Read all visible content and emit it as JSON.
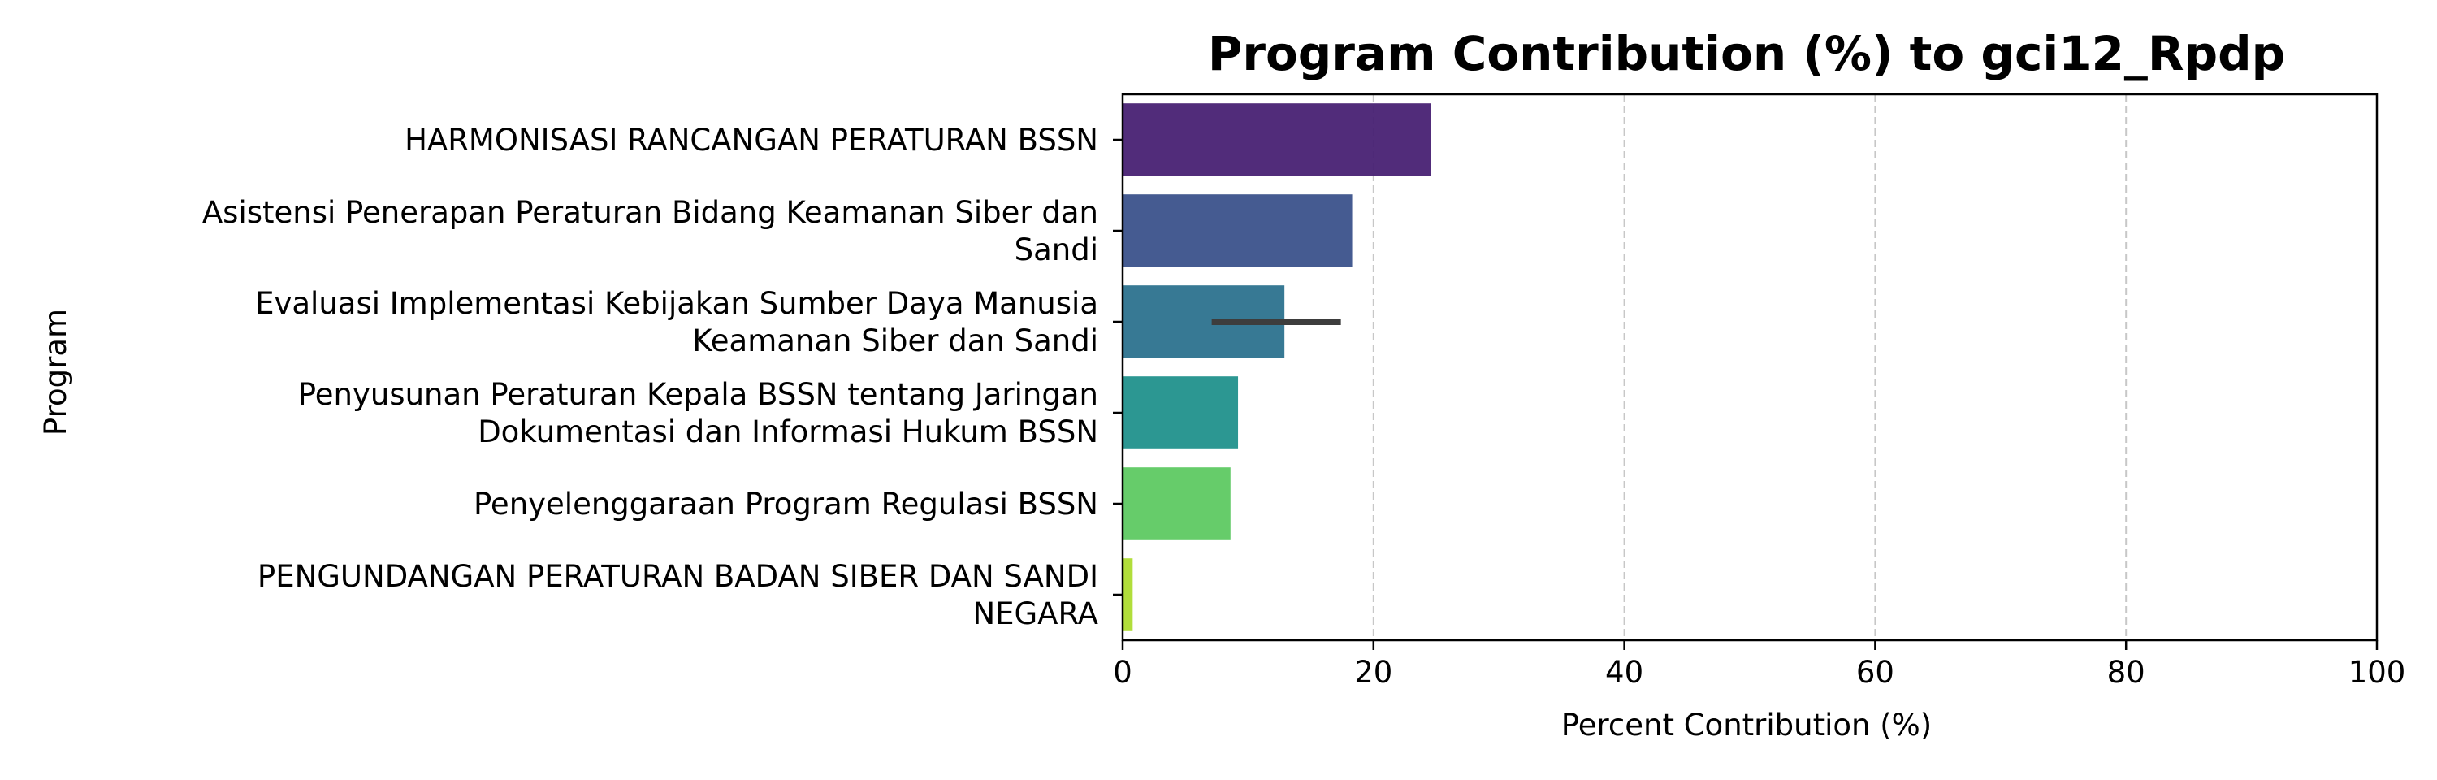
{
  "chart_data": {
    "type": "bar",
    "orientation": "horizontal",
    "title": "Program Contribution (%) to gci12_Rpdp",
    "xlabel": "Percent Contribution (%)",
    "ylabel": "Program",
    "xlim": [
      0,
      100
    ],
    "xticks": [
      "0",
      "20",
      "40",
      "60",
      "80",
      "100"
    ],
    "grid": "x-dashed",
    "categories": [
      [
        "HARMONISASI RANCANGAN PERATURAN BSSN"
      ],
      [
        "Asistensi Penerapan Peraturan Bidang Keamanan Siber dan",
        "Sandi"
      ],
      [
        "Evaluasi Implementasi Kebijakan Sumber Daya Manusia",
        "Keamanan Siber dan Sandi"
      ],
      [
        "Penyusunan Peraturan Kepala BSSN tentang Jaringan",
        "Dokumentasi dan Informasi Hukum BSSN"
      ],
      [
        "Penyelenggaraan Program Regulasi BSSN"
      ],
      [
        "PENGUNDANGAN PERATURAN BADAN SIBER DAN SANDI",
        "NEGARA"
      ]
    ],
    "values": [
      24.6,
      18.3,
      12.9,
      9.2,
      8.6,
      0.8
    ],
    "error_bars": [
      null,
      null,
      [
        7.1,
        17.4
      ],
      null,
      null,
      null
    ],
    "colors": [
      "#482173",
      "#3b528b",
      "#2c728e",
      "#21918c",
      "#5ec962",
      "#addc30"
    ]
  }
}
